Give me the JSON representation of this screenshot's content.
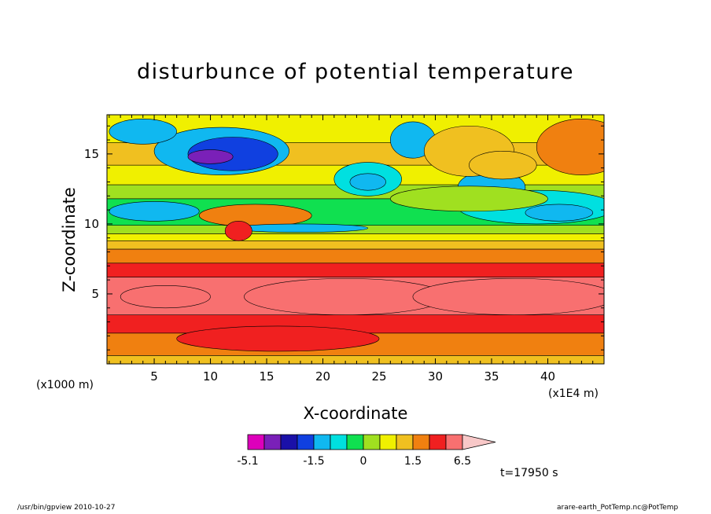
{
  "chart_data": {
    "type": "heatmap",
    "title": "disturbunce of potential temperature",
    "xlabel": "X-coordinate",
    "ylabel": "Z-coordinate",
    "x_scale_label": "(x1E4 m)",
    "y_scale_label": "(x1000 m)",
    "xlim": [
      0.8,
      45
    ],
    "ylim": [
      0,
      17.8
    ],
    "x_ticks": [
      5,
      10,
      15,
      20,
      25,
      30,
      35,
      40
    ],
    "y_ticks": [
      5,
      10,
      15
    ],
    "colorbar": {
      "levels": [
        -5.1,
        -4.2,
        -3.0,
        -2.4,
        -1.5,
        -1.0,
        -0.5,
        0,
        0.5,
        1.0,
        1.5,
        3.5,
        5.0,
        6.5
      ],
      "tick_labels": [
        "-5.1",
        "-1.5",
        "0",
        "1.5",
        "6.5"
      ],
      "colors": [
        "#dd00bb",
        "#7a20b8",
        "#1a10a8",
        "#1040e0",
        "#10b8f0",
        "#00e0e0",
        "#10e050",
        "#a0e020",
        "#f0f000",
        "#f0c020",
        "#f08010",
        "#f02020",
        "#f87070",
        "#f8c8c8"
      ],
      "extend": "max"
    },
    "bands": [
      {
        "z_bottom": 0,
        "z_top": 0.6,
        "value": 1.2
      },
      {
        "z_bottom": 0.6,
        "z_top": 2.2,
        "value": 2.5
      },
      {
        "z_bottom": 2.2,
        "z_top": 3.5,
        "value": 4.0
      },
      {
        "z_bottom": 3.5,
        "z_top": 6.2,
        "value": 5.5
      },
      {
        "z_bottom": 6.2,
        "z_top": 7.2,
        "value": 4.0
      },
      {
        "z_bottom": 7.2,
        "z_top": 8.2,
        "value": 2.5
      },
      {
        "z_bottom": 8.2,
        "z_top": 8.8,
        "value": 1.2
      },
      {
        "z_bottom": 8.8,
        "z_top": 9.3,
        "value": 0.7
      },
      {
        "z_bottom": 9.3,
        "z_top": 9.9,
        "value": 0.2
      },
      {
        "z_bottom": 9.9,
        "z_top": 11.8,
        "value": -0.4
      },
      {
        "z_bottom": 11.8,
        "z_top": 12.8,
        "value": 0.2
      },
      {
        "z_bottom": 12.8,
        "z_top": 14.2,
        "value": 0.7
      },
      {
        "z_bottom": 14.2,
        "z_top": 15.8,
        "value": 1.2
      },
      {
        "z_bottom": 15.8,
        "z_top": 17.8,
        "value": 0.7
      }
    ],
    "features": [
      {
        "x": 22,
        "z": 4.8,
        "rx": 9,
        "rz": 1.3,
        "value": 5.5
      },
      {
        "x": 37,
        "z": 4.8,
        "rx": 9,
        "rz": 1.3,
        "value": 5.5
      },
      {
        "x": 6,
        "z": 4.8,
        "rx": 4,
        "rz": 0.8,
        "value": 5.5
      },
      {
        "x": 16,
        "z": 1.8,
        "rx": 9,
        "rz": 0.9,
        "value": 4.0
      },
      {
        "x": 5,
        "z": 10.9,
        "rx": 4,
        "rz": 0.7,
        "value": -1.5
      },
      {
        "x": 11,
        "z": 15.2,
        "rx": 6,
        "rz": 1.7,
        "value": -1.2
      },
      {
        "x": 12,
        "z": 15.0,
        "rx": 4,
        "rz": 1.2,
        "value": -2.4
      },
      {
        "x": 10,
        "z": 14.8,
        "rx": 2,
        "rz": 0.5,
        "value": -4.2
      },
      {
        "x": 4,
        "z": 16.6,
        "rx": 3,
        "rz": 0.9,
        "value": -1.2
      },
      {
        "x": 24,
        "z": 13.2,
        "rx": 3,
        "rz": 1.2,
        "value": -0.6
      },
      {
        "x": 24,
        "z": 13.0,
        "rx": 1.6,
        "rz": 0.6,
        "value": -1.5
      },
      {
        "x": 28,
        "z": 16.0,
        "rx": 2,
        "rz": 1.3,
        "value": -1.2
      },
      {
        "x": 39,
        "z": 11.2,
        "rx": 7,
        "rz": 1.2,
        "value": -0.6
      },
      {
        "x": 41,
        "z": 10.8,
        "rx": 3,
        "rz": 0.6,
        "value": -1.5
      },
      {
        "x": 35,
        "z": 12.6,
        "rx": 3,
        "rz": 1.2,
        "value": -1.2
      },
      {
        "x": 33,
        "z": 11.8,
        "rx": 7,
        "rz": 0.9,
        "value": 0.2
      },
      {
        "x": 33,
        "z": 15.2,
        "rx": 4,
        "rz": 1.8,
        "value": 1.2
      },
      {
        "x": 43,
        "z": 15.5,
        "rx": 4,
        "rz": 2.0,
        "value": 2.5
      },
      {
        "x": 36,
        "z": 14.2,
        "rx": 3,
        "rz": 1.0,
        "value": 1.2
      },
      {
        "x": 14,
        "z": 10.6,
        "rx": 5,
        "rz": 0.8,
        "value": 2.5
      },
      {
        "x": 18,
        "z": 9.7,
        "rx": 6,
        "rz": 0.3,
        "value": -1.5
      },
      {
        "x": 12.5,
        "z": 9.5,
        "rx": 1.2,
        "rz": 0.7,
        "value": 4.0
      }
    ]
  },
  "labels": {
    "time": "t=17950 s",
    "footer_left": "/usr/bin/gpview   2010-10-27",
    "footer_right": "arare-earth_PotTemp.nc@PotTemp"
  }
}
